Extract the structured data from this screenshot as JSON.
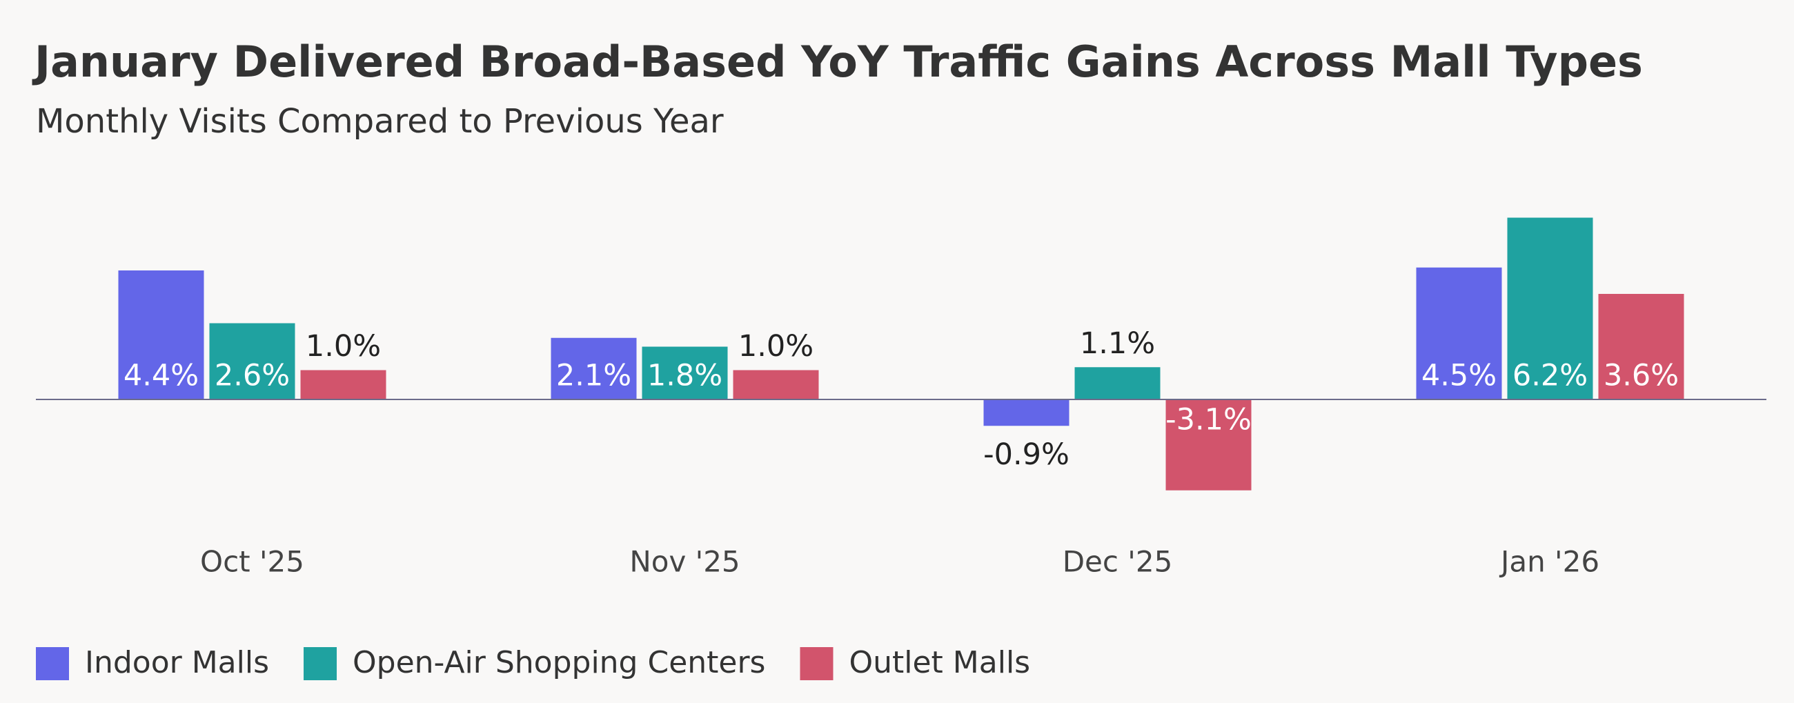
{
  "chart_data": {
    "type": "bar",
    "title": "January Delivered Broad-Based YoY Traffic Gains Across Mall Types",
    "subtitle": "Monthly Visits Compared to Previous Year",
    "categories": [
      "Oct '25",
      "Nov '25",
      "Dec '25",
      "Jan '26"
    ],
    "series": [
      {
        "name": "Indoor Malls",
        "color": "#6366e8",
        "values": [
          4.4,
          2.1,
          -0.9,
          4.5
        ],
        "value_labels": [
          "4.4%",
          "2.1%",
          "-0.9%",
          "4.5%"
        ]
      },
      {
        "name": "Open-Air Shopping Centers",
        "color": "#1fa2a0",
        "values": [
          2.6,
          1.8,
          1.1,
          6.2
        ],
        "value_labels": [
          "2.6%",
          "1.8%",
          "1.1%",
          "6.2%"
        ]
      },
      {
        "name": "Outlet Malls",
        "color": "#d2546c",
        "values": [
          1.0,
          1.0,
          -3.1,
          3.6
        ],
        "value_labels": [
          "1.0%",
          "1.0%",
          "-3.1%",
          "3.6%"
        ]
      }
    ],
    "legend": "bottom-left"
  }
}
